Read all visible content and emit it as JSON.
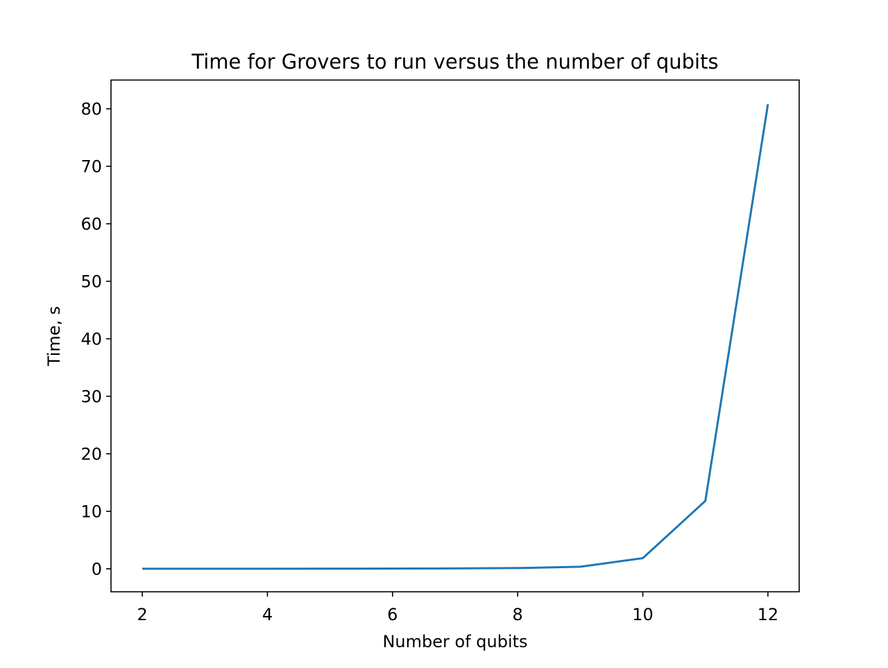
{
  "chart_data": {
    "type": "line",
    "title": "Time for Grovers to run versus the number of qubits",
    "xlabel": "Number of qubits",
    "ylabel": "Time, s",
    "x": [
      2,
      3,
      4,
      5,
      6,
      7,
      8,
      9,
      10,
      11,
      12
    ],
    "series": [
      {
        "values": [
          0.002,
          0.004,
          0.008,
          0.015,
          0.03,
          0.06,
          0.12,
          0.35,
          1.85,
          11.8,
          80.8
        ]
      }
    ],
    "xlim": [
      1.5,
      12.5
    ],
    "ylim": [
      -4,
      85
    ],
    "xticks": [
      2,
      4,
      6,
      8,
      10,
      12
    ],
    "yticks": [
      0,
      10,
      20,
      30,
      40,
      50,
      60,
      70,
      80
    ],
    "line_color": "#1f77b4",
    "grid": false,
    "legend": "none"
  }
}
